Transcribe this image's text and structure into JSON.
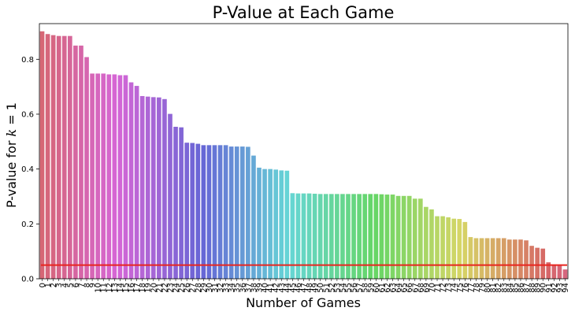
{
  "chart_data": {
    "type": "bar",
    "title": "P-Value at Each Game",
    "xlabel": "Number of Games",
    "ylabel_prefix": "P-value for ",
    "ylabel_var": "k",
    "ylabel_suffix": " = 1",
    "ylim": [
      0,
      0.93
    ],
    "yticks": [
      0.0,
      0.2,
      0.4,
      0.6,
      0.8
    ],
    "ytick_labels": [
      "0.0",
      "0.2",
      "0.4",
      "0.6",
      "0.8"
    ],
    "categories": [
      "0",
      "1",
      "2",
      "3",
      "4",
      "5",
      "6",
      "7",
      "8",
      "9",
      "10",
      "11",
      "12",
      "13",
      "14",
      "15",
      "16",
      "17",
      "18",
      "19",
      "20",
      "21",
      "22",
      "23",
      "24",
      "25",
      "26",
      "27",
      "28",
      "29",
      "30",
      "31",
      "32",
      "33",
      "34",
      "35",
      "36",
      "37",
      "38",
      "39",
      "40",
      "41",
      "42",
      "43",
      "44",
      "45",
      "46",
      "47",
      "48",
      "49",
      "50",
      "51",
      "52",
      "53",
      "54",
      "55",
      "56",
      "57",
      "58",
      "59",
      "60",
      "61",
      "62",
      "63",
      "64",
      "65",
      "66",
      "67",
      "68",
      "69",
      "70",
      "71",
      "72",
      "73",
      "74",
      "75",
      "76",
      "77",
      "78",
      "79",
      "80",
      "81",
      "82",
      "83",
      "84",
      "85",
      "86",
      "87",
      "88",
      "89",
      "90",
      "91",
      "92",
      "93",
      "94"
    ],
    "values": [
      0.902,
      0.892,
      0.888,
      0.885,
      0.885,
      0.885,
      0.85,
      0.85,
      0.808,
      0.748,
      0.748,
      0.748,
      0.745,
      0.745,
      0.742,
      0.742,
      0.716,
      0.703,
      0.666,
      0.664,
      0.662,
      0.661,
      0.655,
      0.601,
      0.554,
      0.552,
      0.496,
      0.495,
      0.492,
      0.487,
      0.487,
      0.487,
      0.487,
      0.487,
      0.482,
      0.482,
      0.482,
      0.481,
      0.449,
      0.405,
      0.4,
      0.4,
      0.398,
      0.395,
      0.394,
      0.312,
      0.311,
      0.311,
      0.311,
      0.31,
      0.309,
      0.309,
      0.309,
      0.309,
      0.309,
      0.309,
      0.309,
      0.309,
      0.309,
      0.309,
      0.309,
      0.308,
      0.307,
      0.307,
      0.302,
      0.302,
      0.302,
      0.292,
      0.292,
      0.262,
      0.253,
      0.228,
      0.228,
      0.224,
      0.219,
      0.218,
      0.207,
      0.152,
      0.148,
      0.148,
      0.148,
      0.148,
      0.148,
      0.148,
      0.143,
      0.143,
      0.143,
      0.14,
      0.12,
      0.113,
      0.11,
      0.06,
      0.052,
      0.048,
      0.034
    ],
    "threshold": 0.05,
    "threshold_color": "#e8251f",
    "grid": false,
    "legend": "none"
  }
}
